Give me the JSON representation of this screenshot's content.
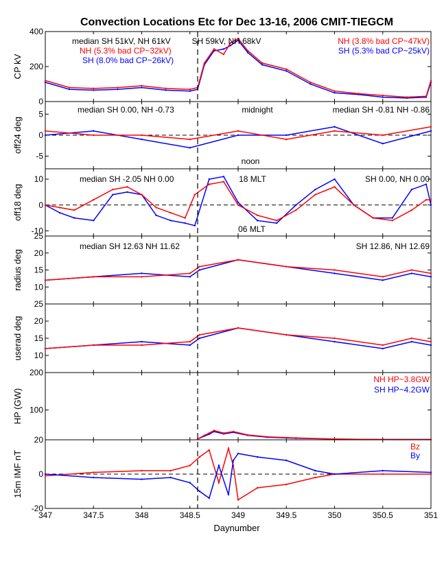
{
  "chart_data": {
    "type": "line",
    "title": "Convection Locations Etc for Dec 13-16, 2006 CMIT-TIEGCM",
    "xlabel": "Daynumber",
    "xlim": [
      347,
      351
    ],
    "x_ticks": [
      "347",
      "347.5",
      "348",
      "348.5",
      "349",
      "349.5",
      "350",
      "350.5",
      "351"
    ],
    "vertical_marker_x": 348.58,
    "colors": {
      "SH": "#0000ff",
      "NH": "#ff0000",
      "axis": "#000000"
    },
    "panels": [
      {
        "id": "cp",
        "ylabel": "CP kV",
        "ylim": [
          0,
          400
        ],
        "y_ticks": [
          "0",
          "200",
          "400"
        ],
        "annotations": [
          "median SH 51kV, NH 61kV",
          "SH 59kV, NH 68kV",
          "NH (5.3% bad CP~32kV)",
          "SH (8.0% bad CP~26kV)",
          "NH (3.8% bad CP~47kV)",
          "SH (5.3% bad CP~25kV)"
        ],
        "series": [
          {
            "name": "SH",
            "x": [
              347,
              347.25,
              347.5,
              347.75,
              348,
              348.25,
              348.5,
              348.58,
              348.65,
              348.75,
              348.85,
              348.92,
              349,
              349.1,
              349.25,
              349.5,
              349.75,
              350,
              350.25,
              350.5,
              350.75,
              350.95,
              351
            ],
            "values": [
              110,
              70,
              65,
              70,
              80,
              65,
              60,
              70,
              210,
              290,
              300,
              320,
              350,
              280,
              210,
              175,
              100,
              50,
              40,
              25,
              20,
              25,
              110
            ]
          },
          {
            "name": "NH",
            "x": [
              347,
              347.25,
              347.5,
              347.75,
              348,
              348.25,
              348.5,
              348.58,
              348.65,
              348.75,
              348.85,
              348.92,
              349,
              349.1,
              349.25,
              349.5,
              349.75,
              350,
              350.25,
              350.5,
              350.75,
              350.95,
              351
            ],
            "values": [
              120,
              80,
              75,
              80,
              90,
              75,
              70,
              80,
              220,
              300,
              270,
              335,
              360,
              290,
              220,
              185,
              110,
              60,
              45,
              35,
              25,
              30,
              120
            ]
          }
        ]
      },
      {
        "id": "off24",
        "ylabel": "off24 deg",
        "ylim": [
          -8,
          8
        ],
        "y_ticks": [
          "-5",
          "0",
          "5"
        ],
        "annotations": [
          "median SH 0.00, NH -0.73",
          "midnight",
          "median SH -0.81 NH -0.86",
          "noon"
        ],
        "series": [
          {
            "name": "SH",
            "x": [
              347,
              347.5,
              348,
              348.5,
              349,
              349.5,
              350,
              350.5,
              351
            ],
            "values": [
              0,
              1,
              -1,
              -3,
              0,
              0,
              2,
              -2,
              1
            ]
          },
          {
            "name": "NH",
            "x": [
              347,
              347.5,
              348,
              348.5,
              349,
              349.5,
              350,
              350.5,
              351
            ],
            "values": [
              1,
              0,
              0,
              -1,
              1,
              -1,
              1,
              0,
              2
            ]
          }
        ]
      },
      {
        "id": "off18",
        "ylabel": "off18 deg",
        "ylim": [
          -12,
          14
        ],
        "y_ticks": [
          "-10",
          "0",
          "10"
        ],
        "annotations": [
          "median SH -2.05 NH 0.00",
          "18 MLT",
          "SH 0.00, NH 0.00",
          "06 MLT"
        ],
        "series": [
          {
            "name": "SH",
            "x": [
              347,
              347.15,
              347.3,
              347.5,
              347.7,
              347.85,
              348,
              348.15,
              348.3,
              348.45,
              348.55,
              348.7,
              348.85,
              349,
              349.2,
              349.4,
              349.6,
              349.8,
              350,
              350.2,
              350.4,
              350.6,
              350.8,
              350.95,
              351
            ],
            "values": [
              0,
              -3,
              -5,
              -6,
              4,
              5,
              4,
              -4,
              -6,
              -7,
              -8,
              10,
              11,
              1,
              -6,
              -7,
              0,
              6,
              10,
              0,
              -5,
              -5,
              6,
              8,
              0
            ]
          },
          {
            "name": "NH",
            "x": [
              347,
              347.15,
              347.3,
              347.5,
              347.7,
              347.85,
              348,
              348.15,
              348.3,
              348.45,
              348.55,
              348.7,
              348.85,
              349,
              349.2,
              349.4,
              349.6,
              349.8,
              350,
              350.2,
              350.4,
              350.6,
              350.8,
              350.95,
              351
            ],
            "values": [
              0,
              -1,
              -2,
              2,
              6,
              7,
              4,
              -1,
              -3,
              -5,
              4,
              8,
              9,
              0,
              -4,
              -6,
              -2,
              4,
              7,
              0,
              -5,
              -6,
              -2,
              2,
              2
            ]
          }
        ]
      },
      {
        "id": "radius",
        "ylabel": "radius deg",
        "ylim": [
          5,
          25
        ],
        "y_ticks": [
          "10",
          "15",
          "20",
          "25"
        ],
        "annotations": [
          "median SH 12.63 NH 11.62",
          "SH 12.86, NH 12.69"
        ],
        "series": [
          {
            "name": "SH",
            "x": [
              347,
              347.5,
              348,
              348.5,
              348.6,
              349,
              349.5,
              350,
              350.5,
              350.8,
              351
            ],
            "values": [
              12,
              13,
              14,
              13,
              15,
              18,
              16,
              14,
              12,
              14,
              13
            ]
          },
          {
            "name": "NH",
            "x": [
              347,
              347.5,
              348,
              348.5,
              348.6,
              349,
              349.5,
              350,
              350.5,
              350.8,
              351
            ],
            "values": [
              12,
              13,
              13,
              14,
              16,
              18,
              16,
              15,
              13,
              15,
              14
            ]
          }
        ]
      },
      {
        "id": "userad",
        "ylabel": "userad deg",
        "ylim": [
          5,
          25
        ],
        "y_ticks": [
          "10",
          "15",
          "20",
          "25"
        ],
        "annotations": [],
        "series": [
          {
            "name": "SH",
            "x": [
              347,
              347.5,
              348,
              348.5,
              348.6,
              349,
              349.5,
              350,
              350.5,
              350.8,
              351
            ],
            "values": [
              12,
              13,
              14,
              13,
              15,
              18,
              16,
              14,
              12,
              14,
              13
            ]
          },
          {
            "name": "NH",
            "x": [
              347,
              347.5,
              348,
              348.5,
              348.6,
              349,
              349.5,
              350,
              350.5,
              350.8,
              351
            ],
            "values": [
              12,
              13,
              13,
              14,
              16,
              18,
              16,
              15,
              13,
              15,
              14
            ]
          }
        ]
      },
      {
        "id": "hp",
        "ylabel": "HP (GW)",
        "ylim": [
          20,
          200
        ],
        "y_ticks": [
          "20",
          "100",
          "200"
        ],
        "annotations": [
          "NH HP~3.8GW",
          "SH HP~4.2GW"
        ],
        "series": [
          {
            "name": "SH",
            "x": [
              348.58,
              348.65,
              348.7,
              348.75,
              348.85,
              348.95,
              349.1,
              349.3,
              349.6,
              350,
              350.5,
              351
            ],
            "values": [
              22,
              30,
              35,
              42,
              36,
              40,
              32,
              27,
              24,
              22,
              21,
              21
            ]
          },
          {
            "name": "NH",
            "x": [
              348.58,
              348.65,
              348.7,
              348.75,
              348.85,
              348.95,
              349.1,
              349.3,
              349.6,
              350,
              350.5,
              351
            ],
            "values": [
              22,
              32,
              38,
              45,
              38,
              42,
              33,
              28,
              25,
              22,
              21,
              21
            ]
          }
        ]
      },
      {
        "id": "imf",
        "ylabel": "15m IMF nT",
        "ylim": [
          -20,
          20
        ],
        "y_ticks": [
          "-20",
          "0"
        ],
        "annotations": [
          "Bz",
          "By"
        ],
        "series": [
          {
            "name": "Bz",
            "x": [
              347,
              347.5,
              348,
              348.3,
              348.5,
              348.6,
              348.7,
              348.8,
              348.9,
              348.95,
              349,
              349.2,
              349.5,
              349.8,
              350,
              350.5,
              351
            ],
            "values": [
              -1,
              1,
              2,
              2,
              5,
              10,
              14,
              -5,
              15,
              5,
              -15,
              -8,
              -6,
              -2,
              0,
              0,
              0
            ]
          },
          {
            "name": "By",
            "x": [
              347,
              347.5,
              348,
              348.3,
              348.5,
              348.6,
              348.7,
              348.8,
              348.9,
              348.95,
              349,
              349.2,
              349.5,
              349.8,
              350,
              350.5,
              351
            ],
            "values": [
              0,
              -2,
              -3,
              -2,
              -5,
              -10,
              -14,
              5,
              -12,
              8,
              12,
              10,
              8,
              2,
              0,
              2,
              1
            ]
          }
        ]
      }
    ]
  }
}
